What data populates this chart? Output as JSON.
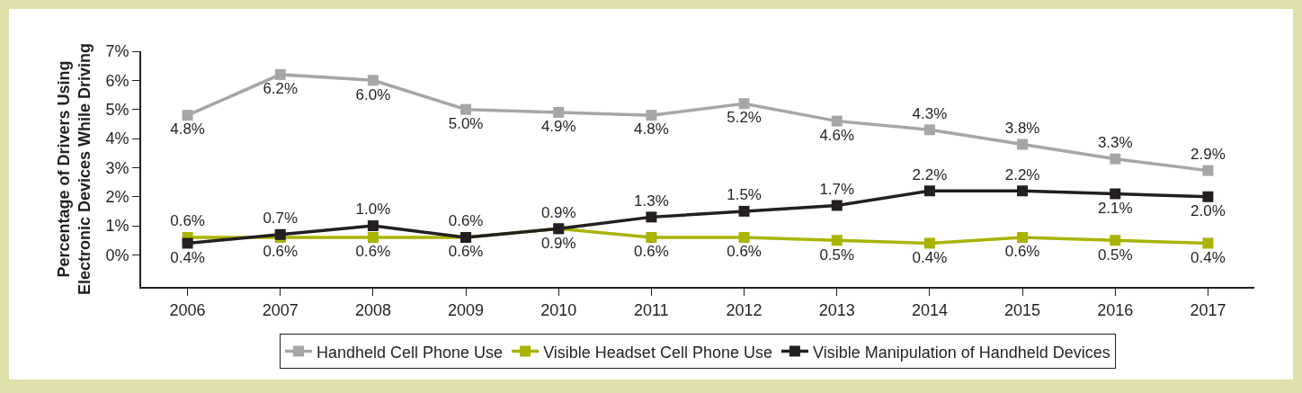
{
  "chart_data": {
    "type": "line",
    "ylabel": "Percentage of Drivers Using\nElectronic Devices While Driving",
    "categories": [
      "2006",
      "2007",
      "2008",
      "2009",
      "2010",
      "2011",
      "2012",
      "2013",
      "2014",
      "2015",
      "2016",
      "2017"
    ],
    "series": [
      {
        "name": "Handheld Cell Phone Use",
        "color": "#a6a6a6",
        "values": [
          4.8,
          6.2,
          6.0,
          5.0,
          4.9,
          4.8,
          5.2,
          4.6,
          4.3,
          3.8,
          3.3,
          2.9
        ],
        "value_labels": [
          "4.8%",
          "6.2%",
          "6.0%",
          "5.0%",
          "4.9%",
          "4.8%",
          "5.2%",
          "4.6%",
          "4.3%",
          "3.8%",
          "3.3%",
          "2.9%"
        ]
      },
      {
        "name": "Visible Headset Cell Phone Use",
        "color": "#a9b300",
        "values": [
          0.6,
          0.6,
          0.6,
          0.6,
          0.9,
          0.6,
          0.6,
          0.5,
          0.4,
          0.6,
          0.5,
          0.4
        ],
        "value_labels": [
          "0.6%",
          "0.6%",
          "0.6%",
          "0.6%",
          "0.9%",
          "0.6%",
          "0.6%",
          "0.5%",
          "0.4%",
          "0.6%",
          "0.5%",
          "0.4%"
        ]
      },
      {
        "name": "Visible Manipulation of Handheld Devices",
        "color": "#231f20",
        "values": [
          0.4,
          0.7,
          1.0,
          0.6,
          0.9,
          1.3,
          1.5,
          1.7,
          2.2,
          2.2,
          2.1,
          2.0
        ],
        "value_labels": [
          "0.4%",
          "0.7%",
          "1.0%",
          "0.6%",
          "0.9%",
          "1.3%",
          "1.5%",
          "1.7%",
          "2.2%",
          "2.2%",
          "2.1%",
          "2.0%"
        ]
      }
    ],
    "ylim": [
      -1.1,
      7
    ],
    "yticks": [
      {
        "value": 0,
        "label": "0%"
      },
      {
        "value": 1,
        "label": "1%"
      },
      {
        "value": 2,
        "label": "2%"
      },
      {
        "value": 3,
        "label": "3%"
      },
      {
        "value": 4,
        "label": "4%"
      },
      {
        "value": 5,
        "label": "5%"
      },
      {
        "value": 6,
        "label": "6%"
      },
      {
        "value": 7,
        "label": "7%"
      }
    ],
    "grid": false,
    "legend": "bottom",
    "marker": "square",
    "line_style": "solid"
  }
}
